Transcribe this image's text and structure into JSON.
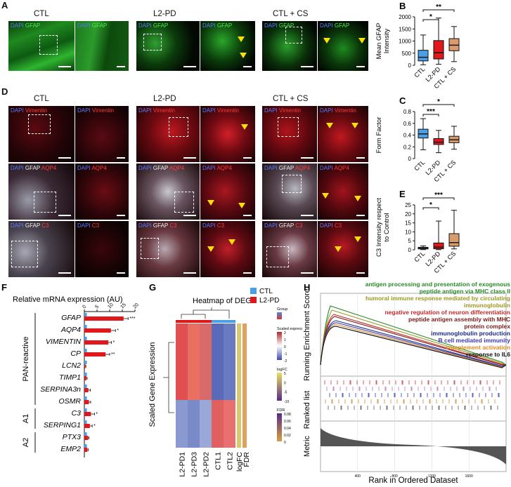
{
  "panels": {
    "A": "A",
    "B": "B",
    "C": "C",
    "D": "D",
    "E": "E",
    "F": "F",
    "G": "G",
    "H": "H"
  },
  "conditions": {
    "ctl": "CTL",
    "pd": "L2-PD",
    "cs": "CTL + CS"
  },
  "stain": {
    "dapi": "DAPI",
    "gfap": "GFAP",
    "vimentin": "Vimentin",
    "aqp4": "AQP4",
    "c3": "C3"
  },
  "colors": {
    "ctl": "#4a9fe6",
    "pd": "#e0181c",
    "cs": "#d99a6c"
  },
  "chart_data": [
    {
      "panel": "B",
      "type": "box",
      "ylabel": "Mean GFAP Intensity",
      "ylim": [
        0,
        2000
      ],
      "yticks": [
        0,
        500,
        1000,
        1500,
        2000
      ],
      "categories": [
        "CTL",
        "L2-PD",
        "CTL + CS"
      ],
      "boxes": [
        {
          "min": 20,
          "q1": 180,
          "median": 330,
          "q3": 620,
          "max": 1250
        },
        {
          "min": 40,
          "q1": 260,
          "median": 520,
          "q3": 1020,
          "max": 1950
        },
        {
          "min": 150,
          "q1": 600,
          "median": 830,
          "q3": 1100,
          "max": 1600
        }
      ],
      "significance": [
        {
          "from": 0,
          "to": 1,
          "label": "*"
        },
        {
          "from": 0,
          "to": 2,
          "label": "**"
        }
      ]
    },
    {
      "panel": "C",
      "type": "box",
      "ylabel": "Form Factor",
      "ylim": [
        0,
        0.8
      ],
      "yticks": [
        0,
        0.2,
        0.4,
        0.6,
        0.8
      ],
      "categories": [
        "CTL",
        "L2-PD",
        "CTL + CS"
      ],
      "boxes": [
        {
          "min": 0.15,
          "q1": 0.35,
          "median": 0.42,
          "q3": 0.5,
          "max": 0.68
        },
        {
          "min": 0.1,
          "q1": 0.24,
          "median": 0.28,
          "q3": 0.34,
          "max": 0.48
        },
        {
          "min": 0.16,
          "q1": 0.27,
          "median": 0.32,
          "q3": 0.38,
          "max": 0.55
        }
      ],
      "significance": [
        {
          "from": 0,
          "to": 1,
          "label": "***"
        },
        {
          "from": 0,
          "to": 2,
          "label": "*"
        }
      ]
    },
    {
      "panel": "E",
      "type": "box",
      "ylabel": "C3 Intensity respect to Control",
      "ylim": [
        0,
        25
      ],
      "yticks": [
        0,
        5,
        10,
        15,
        20,
        25
      ],
      "categories": [
        "CTL",
        "L2-PD",
        "CTL + CS"
      ],
      "boxes": [
        {
          "min": 0.1,
          "q1": 0.5,
          "median": 1,
          "q3": 1.4,
          "max": 2.2
        },
        {
          "min": 0.1,
          "q1": 0.6,
          "median": 1.5,
          "q3": 3.8,
          "max": 16
        },
        {
          "min": 0.5,
          "q1": 2,
          "median": 4,
          "q3": 9,
          "max": 22
        }
      ],
      "significance": [
        {
          "from": 0,
          "to": 1,
          "label": "*"
        },
        {
          "from": 0,
          "to": 2,
          "label": "***"
        }
      ]
    },
    {
      "panel": "F",
      "type": "bar",
      "title": "Relative mRNA expression (AU)",
      "xticks": [
        "0",
        "5",
        "10",
        "15",
        "20"
      ],
      "xlim": [
        0,
        20
      ],
      "categories": [
        "GFAP",
        "AQP4",
        "VIMENTIN",
        "CP",
        "LCN2",
        "TIMP1",
        "SERPINA3n",
        "OSMR",
        "C3",
        "SERPING1",
        "PTX3",
        "EMP2"
      ],
      "series": [
        {
          "name": "CTL",
          "values": [
            1,
            1,
            1,
            1,
            1,
            1,
            1,
            1,
            1,
            1,
            1,
            1
          ]
        },
        {
          "name": "L2-PD",
          "values": [
            15.5,
            10.5,
            9.5,
            8.4,
            0.4,
            0.8,
            1.6,
            1.8,
            2.6,
            2.2,
            1.5,
            1.2
          ]
        }
      ],
      "errors": [
        1.8,
        1.8,
        1.2,
        1.6,
        0.2,
        0.3,
        0.8,
        0.7,
        1.4,
        0.9,
        0.3,
        0.3
      ],
      "stars": [
        "***",
        "*",
        "*",
        "**",
        "",
        "",
        "",
        "",
        "*",
        "*",
        "",
        ""
      ],
      "groups": [
        {
          "label": "PAN-reactive",
          "from": 0,
          "to": 7
        },
        {
          "label": "A1",
          "from": 8,
          "to": 9
        },
        {
          "label": "A2",
          "from": 10,
          "to": 11
        }
      ]
    },
    {
      "panel": "G",
      "type": "heatmap",
      "title": "Heatmap of DEG",
      "ylabel": "Scaled Gene Expression",
      "columns": [
        "L2-PD1",
        "L2-PD3",
        "L2-PD2",
        "CTL1",
        "CTL2",
        "logFC",
        "FDR"
      ],
      "legend": [
        {
          "name": "CTL"
        },
        {
          "name": "L2-PD"
        }
      ],
      "scales": [
        {
          "title": "Group",
          "ticks": []
        },
        {
          "title": "Scaled expression",
          "ticks": [
            "2",
            "1",
            "0",
            "-1",
            "-2"
          ]
        },
        {
          "title": "logFC",
          "ticks": [
            "5",
            "0",
            "-5",
            "-10"
          ]
        },
        {
          "title": "FDR",
          "ticks": [
            "0.08",
            "0.06",
            "0.04",
            "0.02",
            "0"
          ]
        }
      ]
    },
    {
      "panel": "H",
      "type": "line",
      "ylabel_top": "Running Enrichment Score",
      "ylabel_mid": "Ranked list",
      "ylabel_bot": "Metric",
      "xlabel": "Rank in Ordered Dataset",
      "xticks": [
        "400",
        "800",
        "1200",
        "1600"
      ],
      "series": [
        {
          "name": "antigen processing and presentation of exogenous",
          "color": "#2a8a2a"
        },
        {
          "name": "peptide antigen via MHC class II",
          "color": "#2a8a2a"
        },
        {
          "name": "humoral immune response mediated by circulating",
          "color": "#9a9a20"
        },
        {
          "name": "immunoglobulin",
          "color": "#9a9a20"
        },
        {
          "name": "negative regulation of neuron differentiation",
          "color": "#c8282a"
        },
        {
          "name": "peptide antigen assembly with MHC",
          "color": "#7a1a1a"
        },
        {
          "name": "protein complex",
          "color": "#7a1a1a"
        },
        {
          "name": "immunoglobulin production",
          "color": "#1a2a8a"
        },
        {
          "name": "B cell mediated immunity",
          "color": "#3a3ab0"
        },
        {
          "name": "complement activation",
          "color": "#e08a20"
        },
        {
          "name": "response to IL6",
          "color": "#111111"
        }
      ]
    }
  ]
}
